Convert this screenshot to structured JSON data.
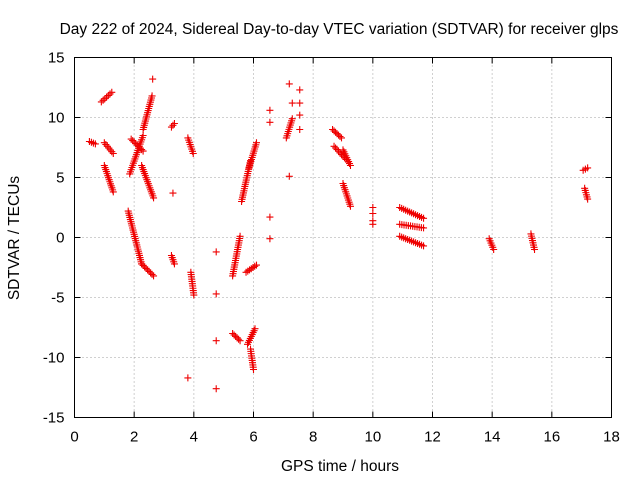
{
  "chart_data": {
    "type": "scatter",
    "title": "Day 222 of 2024, Sidereal Day-to-day VTEC variation (SDTVAR) for receiver glps",
    "xlabel": "GPS time / hours",
    "ylabel": "SDTVAR / TECUs",
    "xlim": [
      0,
      18
    ],
    "ylim": [
      -15,
      15
    ],
    "xticks": [
      0,
      2,
      4,
      6,
      8,
      10,
      12,
      14,
      16,
      18
    ],
    "yticks": [
      -15,
      -10,
      -5,
      0,
      5,
      10,
      15
    ],
    "grid": true,
    "marker": "+",
    "color": "#ee0000",
    "segments": [
      {
        "x": [
          0.5,
          0.7
        ],
        "y": [
          8.0,
          7.8
        ]
      },
      {
        "x": [
          0.9,
          1.25
        ],
        "y": [
          11.3,
          12.1
        ]
      },
      {
        "x": [
          1.0,
          1.3
        ],
        "y": [
          7.9,
          7.0
        ]
      },
      {
        "x": [
          1.0,
          1.3
        ],
        "y": [
          6.0,
          3.8
        ]
      },
      {
        "x": [
          1.8,
          2.25
        ],
        "y": [
          2.2,
          -2.2
        ]
      },
      {
        "x": [
          2.25,
          2.65
        ],
        "y": [
          -2.2,
          -3.2
        ]
      },
      {
        "x": [
          1.85,
          2.3
        ],
        "y": [
          5.3,
          8.5
        ]
      },
      {
        "x": [
          1.9,
          2.3
        ],
        "y": [
          8.2,
          7.2
        ]
      },
      {
        "x": [
          2.25,
          2.65
        ],
        "y": [
          6.0,
          3.3
        ]
      },
      {
        "x": [
          2.3,
          2.6
        ],
        "y": [
          9.0,
          11.8
        ]
      },
      {
        "x": [
          3.25,
          3.35
        ],
        "y": [
          9.2,
          9.5
        ]
      },
      {
        "x": [
          3.25,
          3.35
        ],
        "y": [
          -1.5,
          -2.2
        ]
      },
      {
        "x": [
          3.9,
          4.0
        ],
        "y": [
          -2.9,
          -4.8
        ]
      },
      {
        "x": [
          3.8,
          3.98
        ],
        "y": [
          8.3,
          7.0
        ]
      },
      {
        "x": [
          5.3,
          5.55
        ],
        "y": [
          -8.0,
          -8.6
        ]
      },
      {
        "x": [
          5.3,
          5.55
        ],
        "y": [
          -3.2,
          0.1
        ]
      },
      {
        "x": [
          5.6,
          5.9
        ],
        "y": [
          3.0,
          6.4
        ]
      },
      {
        "x": [
          5.75,
          6.1
        ],
        "y": [
          -2.9,
          -2.3
        ]
      },
      {
        "x": [
          5.8,
          6.05
        ],
        "y": [
          -8.9,
          -7.6
        ]
      },
      {
        "x": [
          5.9,
          6.0
        ],
        "y": [
          -9.3,
          -11.0
        ]
      },
      {
        "x": [
          5.85,
          6.1
        ],
        "y": [
          5.8,
          7.9
        ]
      },
      {
        "x": [
          7.1,
          7.3
        ],
        "y": [
          8.3,
          9.9
        ]
      },
      {
        "x": [
          8.65,
          8.95
        ],
        "y": [
          9.0,
          8.3
        ]
      },
      {
        "x": [
          8.7,
          9.1
        ],
        "y": [
          7.6,
          6.5
        ]
      },
      {
        "x": [
          9.0,
          9.25
        ],
        "y": [
          7.3,
          6.0
        ]
      },
      {
        "x": [
          9.0,
          9.25
        ],
        "y": [
          4.5,
          2.6
        ]
      },
      {
        "x": [
          10.9,
          11.7
        ],
        "y": [
          2.5,
          1.6
        ]
      },
      {
        "x": [
          10.9,
          11.7
        ],
        "y": [
          1.1,
          0.8
        ]
      },
      {
        "x": [
          10.9,
          11.7
        ],
        "y": [
          0.1,
          -0.7
        ]
      },
      {
        "x": [
          13.9,
          14.05
        ],
        "y": [
          -0.1,
          -1.0
        ]
      },
      {
        "x": [
          15.3,
          15.42
        ],
        "y": [
          0.3,
          -1.0
        ]
      },
      {
        "x": [
          17.05,
          17.2
        ],
        "y": [
          5.6,
          5.8
        ]
      },
      {
        "x": [
          17.1,
          17.2
        ],
        "y": [
          4.1,
          3.2
        ]
      }
    ],
    "isolated_points": [
      {
        "x": 2.62,
        "y": 13.2
      },
      {
        "x": 3.3,
        "y": 3.7
      },
      {
        "x": 3.8,
        "y": -11.7
      },
      {
        "x": 4.75,
        "y": -1.2
      },
      {
        "x": 4.75,
        "y": -4.7
      },
      {
        "x": 4.75,
        "y": -8.6
      },
      {
        "x": 4.75,
        "y": -12.6
      },
      {
        "x": 6.55,
        "y": 10.6
      },
      {
        "x": 6.55,
        "y": 9.6
      },
      {
        "x": 6.55,
        "y": 1.7
      },
      {
        "x": 6.55,
        "y": -0.1
      },
      {
        "x": 7.2,
        "y": 12.8
      },
      {
        "x": 7.3,
        "y": 11.2
      },
      {
        "x": 7.55,
        "y": 12.3
      },
      {
        "x": 7.55,
        "y": 11.2
      },
      {
        "x": 7.55,
        "y": 10.2
      },
      {
        "x": 7.55,
        "y": 9.0
      },
      {
        "x": 7.2,
        "y": 5.1
      },
      {
        "x": 10.0,
        "y": 2.5
      },
      {
        "x": 10.0,
        "y": 2.0
      },
      {
        "x": 10.0,
        "y": 1.4
      },
      {
        "x": 10.0,
        "y": 1.1
      }
    ]
  }
}
